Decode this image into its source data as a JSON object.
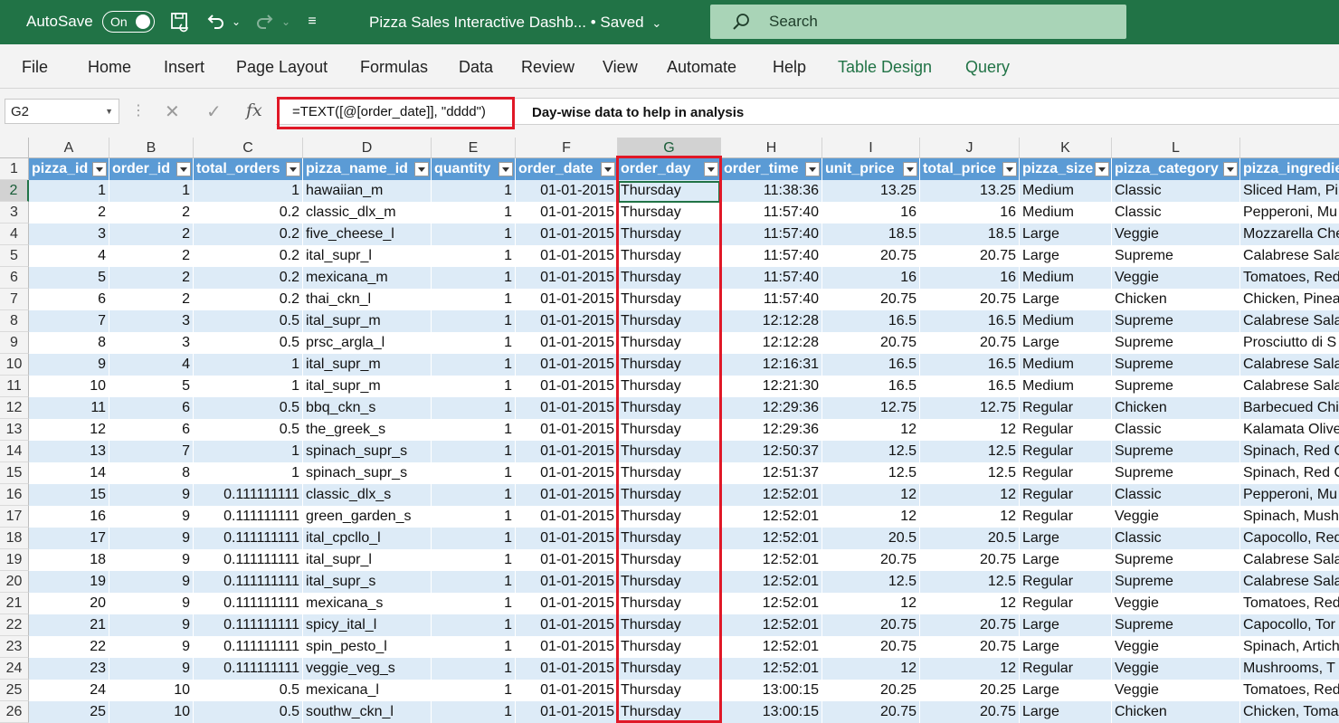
{
  "titlebar": {
    "autosave_label": "AutoSave",
    "toggle_state": "On",
    "doc_title": "Pizza Sales Interactive Dashb...  •  Saved",
    "search_placeholder": "Search"
  },
  "ribbon": {
    "tabs": [
      "File",
      "Home",
      "Insert",
      "Page Layout",
      "Formulas",
      "Data",
      "Review",
      "View",
      "Automate",
      "Help",
      "Table Design",
      "Query"
    ]
  },
  "formula_bar": {
    "name_box": "G2",
    "formula": "=TEXT([@[order_date]], \"dddd\")",
    "note": "Day-wise data to help in analysis"
  },
  "grid": {
    "column_letters": [
      "A",
      "B",
      "C",
      "D",
      "E",
      "F",
      "G",
      "H",
      "I",
      "J",
      "K",
      "L"
    ],
    "selected_column": "G",
    "selected_row": "2",
    "headers": [
      "pizza_id",
      "order_id",
      "total_orders",
      "pizza_name_id",
      "quantity",
      "order_date",
      "order_day",
      "order_time",
      "unit_price",
      "total_price",
      "pizza_size",
      "pizza_category",
      "pizza_ingredie"
    ],
    "rows": [
      [
        "1",
        "1",
        "1",
        "hawaiian_m",
        "1",
        "01-01-2015",
        "Thursday",
        "11:38:36",
        "13.25",
        "13.25",
        "Medium",
        "Classic",
        "Sliced Ham, Pin"
      ],
      [
        "2",
        "2",
        "0.2",
        "classic_dlx_m",
        "1",
        "01-01-2015",
        "Thursday",
        "11:57:40",
        "16",
        "16",
        "Medium",
        "Classic",
        "Pepperoni, Mu"
      ],
      [
        "3",
        "2",
        "0.2",
        "five_cheese_l",
        "1",
        "01-01-2015",
        "Thursday",
        "11:57:40",
        "18.5",
        "18.5",
        "Large",
        "Veggie",
        "Mozzarella Che"
      ],
      [
        "4",
        "2",
        "0.2",
        "ital_supr_l",
        "1",
        "01-01-2015",
        "Thursday",
        "11:57:40",
        "20.75",
        "20.75",
        "Large",
        "Supreme",
        "Calabrese Sala"
      ],
      [
        "5",
        "2",
        "0.2",
        "mexicana_m",
        "1",
        "01-01-2015",
        "Thursday",
        "11:57:40",
        "16",
        "16",
        "Medium",
        "Veggie",
        "Tomatoes, Red"
      ],
      [
        "6",
        "2",
        "0.2",
        "thai_ckn_l",
        "1",
        "01-01-2015",
        "Thursday",
        "11:57:40",
        "20.75",
        "20.75",
        "Large",
        "Chicken",
        "Chicken, Pinea"
      ],
      [
        "7",
        "3",
        "0.5",
        "ital_supr_m",
        "1",
        "01-01-2015",
        "Thursday",
        "12:12:28",
        "16.5",
        "16.5",
        "Medium",
        "Supreme",
        "Calabrese Sala"
      ],
      [
        "8",
        "3",
        "0.5",
        "prsc_argla_l",
        "1",
        "01-01-2015",
        "Thursday",
        "12:12:28",
        "20.75",
        "20.75",
        "Large",
        "Supreme",
        "Prosciutto di S"
      ],
      [
        "9",
        "4",
        "1",
        "ital_supr_m",
        "1",
        "01-01-2015",
        "Thursday",
        "12:16:31",
        "16.5",
        "16.5",
        "Medium",
        "Supreme",
        "Calabrese Sala"
      ],
      [
        "10",
        "5",
        "1",
        "ital_supr_m",
        "1",
        "01-01-2015",
        "Thursday",
        "12:21:30",
        "16.5",
        "16.5",
        "Medium",
        "Supreme",
        "Calabrese Sala"
      ],
      [
        "11",
        "6",
        "0.5",
        "bbq_ckn_s",
        "1",
        "01-01-2015",
        "Thursday",
        "12:29:36",
        "12.75",
        "12.75",
        "Regular",
        "Chicken",
        "Barbecued Chi"
      ],
      [
        "12",
        "6",
        "0.5",
        "the_greek_s",
        "1",
        "01-01-2015",
        "Thursday",
        "12:29:36",
        "12",
        "12",
        "Regular",
        "Classic",
        "Kalamata Olive"
      ],
      [
        "13",
        "7",
        "1",
        "spinach_supr_s",
        "1",
        "01-01-2015",
        "Thursday",
        "12:50:37",
        "12.5",
        "12.5",
        "Regular",
        "Supreme",
        "Spinach, Red O"
      ],
      [
        "14",
        "8",
        "1",
        "spinach_supr_s",
        "1",
        "01-01-2015",
        "Thursday",
        "12:51:37",
        "12.5",
        "12.5",
        "Regular",
        "Supreme",
        "Spinach, Red O"
      ],
      [
        "15",
        "9",
        "0.111111111",
        "classic_dlx_s",
        "1",
        "01-01-2015",
        "Thursday",
        "12:52:01",
        "12",
        "12",
        "Regular",
        "Classic",
        "Pepperoni, Mu"
      ],
      [
        "16",
        "9",
        "0.111111111",
        "green_garden_s",
        "1",
        "01-01-2015",
        "Thursday",
        "12:52:01",
        "12",
        "12",
        "Regular",
        "Veggie",
        "Spinach, Mush"
      ],
      [
        "17",
        "9",
        "0.111111111",
        "ital_cpcllo_l",
        "1",
        "01-01-2015",
        "Thursday",
        "12:52:01",
        "20.5",
        "20.5",
        "Large",
        "Classic",
        "Capocollo, Red"
      ],
      [
        "18",
        "9",
        "0.111111111",
        "ital_supr_l",
        "1",
        "01-01-2015",
        "Thursday",
        "12:52:01",
        "20.75",
        "20.75",
        "Large",
        "Supreme",
        "Calabrese Sala"
      ],
      [
        "19",
        "9",
        "0.111111111",
        "ital_supr_s",
        "1",
        "01-01-2015",
        "Thursday",
        "12:52:01",
        "12.5",
        "12.5",
        "Regular",
        "Supreme",
        "Calabrese Sala"
      ],
      [
        "20",
        "9",
        "0.111111111",
        "mexicana_s",
        "1",
        "01-01-2015",
        "Thursday",
        "12:52:01",
        "12",
        "12",
        "Regular",
        "Veggie",
        "Tomatoes, Red"
      ],
      [
        "21",
        "9",
        "0.111111111",
        "spicy_ital_l",
        "1",
        "01-01-2015",
        "Thursday",
        "12:52:01",
        "20.75",
        "20.75",
        "Large",
        "Supreme",
        "Capocollo, Tor"
      ],
      [
        "22",
        "9",
        "0.111111111",
        "spin_pesto_l",
        "1",
        "01-01-2015",
        "Thursday",
        "12:52:01",
        "20.75",
        "20.75",
        "Large",
        "Veggie",
        "Spinach, Artich"
      ],
      [
        "23",
        "9",
        "0.111111111",
        "veggie_veg_s",
        "1",
        "01-01-2015",
        "Thursday",
        "12:52:01",
        "12",
        "12",
        "Regular",
        "Veggie",
        "Mushrooms, T"
      ],
      [
        "24",
        "10",
        "0.5",
        "mexicana_l",
        "1",
        "01-01-2015",
        "Thursday",
        "13:00:15",
        "20.25",
        "20.25",
        "Large",
        "Veggie",
        "Tomatoes, Red"
      ],
      [
        "25",
        "10",
        "0.5",
        "southw_ckn_l",
        "1",
        "01-01-2015",
        "Thursday",
        "13:00:15",
        "20.75",
        "20.75",
        "Large",
        "Chicken",
        "Chicken, Toma"
      ]
    ]
  },
  "colors": {
    "excel_green": "#217346",
    "header_blue": "#5b9bd5",
    "band_blue": "#ddebf7",
    "highlight_red": "#e01827"
  }
}
